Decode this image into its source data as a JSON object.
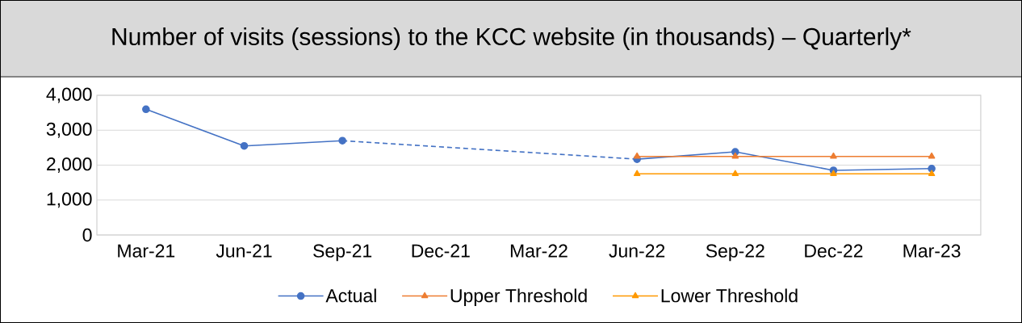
{
  "chart_data": {
    "type": "line",
    "title": "Number of visits (sessions) to the KCC website (in thousands) – Quarterly*",
    "categories": [
      "Mar-21",
      "Jun-21",
      "Sep-21",
      "Dec-21",
      "Mar-22",
      "Jun-22",
      "Sep-22",
      "Dec-22",
      "Mar-23"
    ],
    "series": [
      {
        "name": "Actual",
        "color": "#4472c4",
        "marker": "circle",
        "line_style": "solid",
        "values": [
          3600,
          2550,
          2700,
          null,
          null,
          2170,
          2380,
          1850,
          1900
        ]
      },
      {
        "name": "Upper Threshold",
        "color": "#ed7d31",
        "marker": "triangle",
        "line_style": "solid",
        "values": [
          null,
          null,
          null,
          null,
          null,
          2250,
          2250,
          2250,
          2250
        ]
      },
      {
        "name": "Lower Threshold",
        "color": "#ff9900",
        "marker": "triangle",
        "line_style": "solid",
        "values": [
          null,
          null,
          null,
          null,
          null,
          1750,
          1750,
          1750,
          1750
        ]
      }
    ],
    "ylim": [
      0,
      4000
    ],
    "yticks": [
      {
        "value": 0,
        "label": "0"
      },
      {
        "value": 1000,
        "label": "1,000"
      },
      {
        "value": 2000,
        "label": "2,000"
      },
      {
        "value": 3000,
        "label": "3,000"
      },
      {
        "value": 4000,
        "label": "4,000"
      }
    ],
    "grid": "y",
    "legend": "bottom"
  }
}
